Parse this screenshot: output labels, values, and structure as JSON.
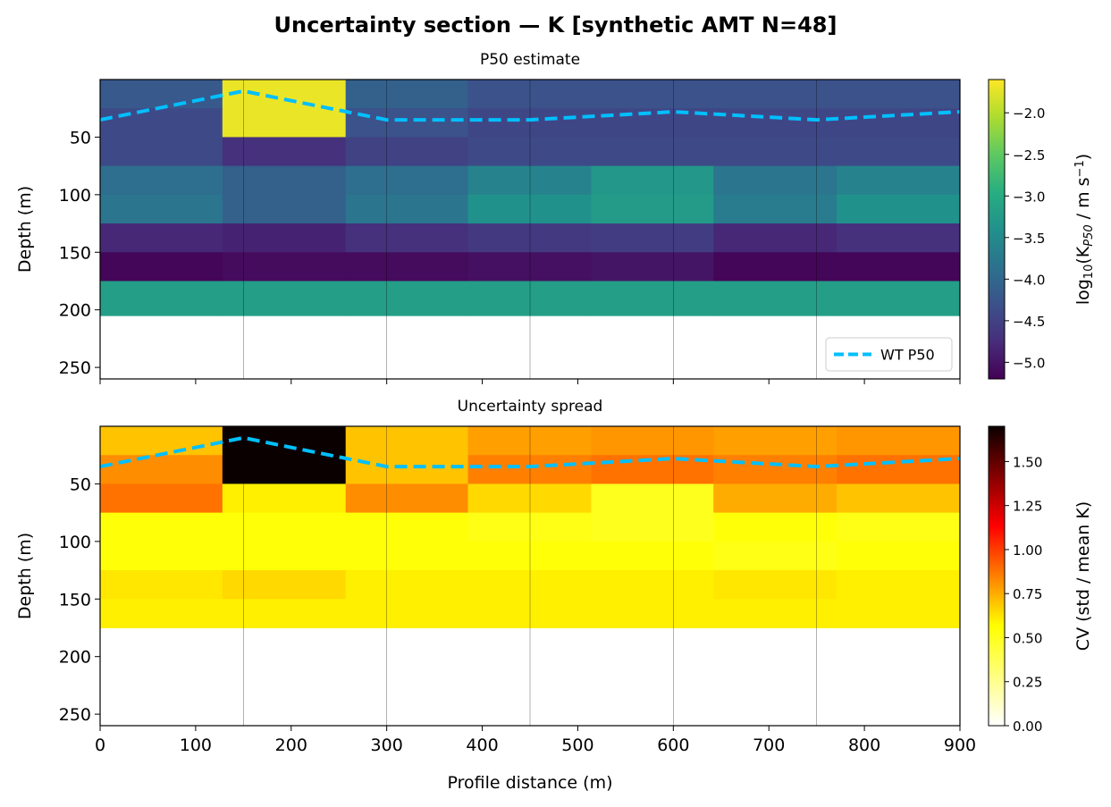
{
  "title": "Uncertainty section — K  [synthetic AMT  N=48]",
  "chart_data": [
    {
      "type": "heatmap",
      "title": "P50 estimate",
      "xlabel": "",
      "ylabel": "Depth (m)",
      "xlim": [
        0,
        900
      ],
      "ylim": [
        260,
        0
      ],
      "xticks": [
        0,
        100,
        200,
        300,
        400,
        500,
        600,
        700,
        800,
        900
      ],
      "yticks": [
        50,
        100,
        150,
        200,
        250
      ],
      "x_edges": [
        0,
        128,
        257,
        385,
        514,
        642,
        771,
        900
      ],
      "depth_edges": [
        0,
        25,
        50,
        75,
        100,
        125,
        150,
        175,
        205
      ],
      "colormap": "viridis",
      "colorbar": {
        "label": "log10(K_P50 / m s^-1)",
        "label_base": "log",
        "label_sub1": "10",
        "label_mid": "(K",
        "label_sub2": "P50",
        "label_end": " / m s",
        "label_sup": "−1",
        "label_close": ")",
        "range": [
          -5.2,
          -1.6
        ],
        "ticks": [
          -2.0,
          -2.5,
          -3.0,
          -3.5,
          -4.0,
          -4.5,
          -5.0
        ],
        "tick_labels": [
          "−2.0",
          "−2.5",
          "−3.0",
          "−3.5",
          "−4.0",
          "−4.5",
          "−5.0"
        ]
      },
      "values": [
        [
          -4.2,
          -1.7,
          -4.1,
          -4.3,
          -4.3,
          -4.3,
          -4.3
        ],
        [
          -4.4,
          -1.7,
          -4.3,
          -4.45,
          -4.45,
          -4.45,
          -4.45
        ],
        [
          -4.4,
          -4.7,
          -4.5,
          -4.4,
          -4.4,
          -4.4,
          -4.4
        ],
        [
          -3.9,
          -4.1,
          -3.9,
          -3.6,
          -3.3,
          -3.8,
          -3.6
        ],
        [
          -3.8,
          -4.1,
          -3.8,
          -3.4,
          -3.25,
          -3.7,
          -3.4
        ],
        [
          -4.8,
          -4.85,
          -4.7,
          -4.6,
          -4.55,
          -4.8,
          -4.7
        ],
        [
          -5.15,
          -5.1,
          -5.1,
          -5.05,
          -5.0,
          -5.15,
          -5.15
        ],
        [
          -3.2,
          -3.2,
          -3.2,
          -3.2,
          -3.2,
          -3.2,
          -3.2
        ]
      ],
      "legend": {
        "label": "WT P50",
        "placement": "lower right"
      },
      "water_table": {
        "name": "WT P50",
        "color": "#00bfff",
        "x": [
          0,
          150,
          300,
          450,
          600,
          750,
          900
        ],
        "depth": [
          35,
          10,
          35,
          35,
          28,
          35,
          28
        ]
      },
      "vlines_x": [
        150,
        300,
        450,
        600,
        750
      ],
      "grid": false
    },
    {
      "type": "heatmap",
      "title": "Uncertainty spread",
      "xlabel": "Profile distance (m)",
      "ylabel": "Depth (m)",
      "xlim": [
        0,
        900
      ],
      "ylim": [
        260,
        0
      ],
      "xticks": [
        0,
        100,
        200,
        300,
        400,
        500,
        600,
        700,
        800,
        900
      ],
      "yticks": [
        50,
        100,
        150,
        200,
        250
      ],
      "x_edges": [
        0,
        128,
        257,
        385,
        514,
        642,
        771,
        900
      ],
      "depth_edges": [
        0,
        25,
        50,
        75,
        100,
        125,
        150,
        175
      ],
      "colormap": "hot_r",
      "colorbar": {
        "label": "CV  (std / mean K)",
        "range": [
          0,
          1.7
        ],
        "ticks": [
          0.0,
          0.25,
          0.5,
          0.75,
          1.0,
          1.25,
          1.5
        ],
        "tick_labels": [
          "0.00",
          "0.25",
          "0.50",
          "0.75",
          "1.00",
          "1.25",
          "1.50"
        ]
      },
      "values": [
        [
          0.7,
          1.7,
          0.7,
          0.78,
          0.8,
          0.78,
          0.8
        ],
        [
          0.82,
          1.7,
          0.7,
          0.85,
          0.88,
          0.85,
          0.88
        ],
        [
          0.88,
          0.6,
          0.82,
          0.65,
          0.5,
          0.75,
          0.7
        ],
        [
          0.55,
          0.55,
          0.55,
          0.52,
          0.5,
          0.55,
          0.52
        ],
        [
          0.55,
          0.55,
          0.55,
          0.55,
          0.55,
          0.52,
          0.55
        ],
        [
          0.62,
          0.65,
          0.6,
          0.6,
          0.6,
          0.62,
          0.6
        ],
        [
          0.6,
          0.6,
          0.6,
          0.6,
          0.6,
          0.6,
          0.6
        ]
      ],
      "water_table": {
        "name": "WT P50",
        "color": "#00bfff",
        "x": [
          0,
          150,
          300,
          450,
          600,
          750,
          900
        ],
        "depth": [
          35,
          10,
          35,
          35,
          28,
          35,
          28
        ]
      },
      "vlines_x": [
        150,
        300,
        450,
        600,
        750
      ],
      "grid": false
    }
  ]
}
